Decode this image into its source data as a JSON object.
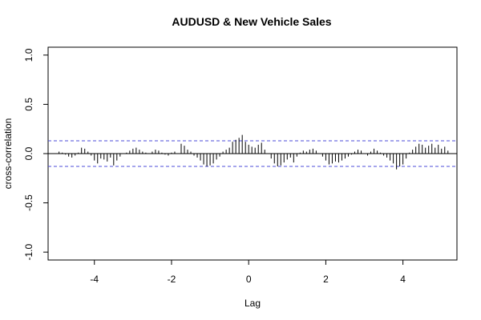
{
  "chart_data": {
    "type": "line",
    "title": "AUDUSD & New Vehicle Sales",
    "xlabel": "Lag",
    "ylabel": "cross-correlation",
    "xlim": [
      -5.2,
      5.4
    ],
    "ylim": [
      -1.08,
      1.08
    ],
    "x_ticks": [
      {
        "value": -4,
        "label": "-4"
      },
      {
        "value": -2,
        "label": "-2"
      },
      {
        "value": 0,
        "label": "0"
      },
      {
        "value": 2,
        "label": "2"
      },
      {
        "value": 4,
        "label": "4"
      }
    ],
    "y_ticks": [
      {
        "value": -1.0,
        "label": "-1.0"
      },
      {
        "value": -0.5,
        "label": "-0.5"
      },
      {
        "value": 0.0,
        "label": "0.0"
      },
      {
        "value": 0.5,
        "label": "0.5"
      },
      {
        "value": 1.0,
        "label": "1.0"
      }
    ],
    "confidence_bound": 0.13,
    "lag_step": 0.083333,
    "lag_start": -4.916667,
    "values": [
      0.02,
      0.01,
      -0.01,
      -0.03,
      -0.04,
      -0.02,
      0.01,
      0.06,
      0.05,
      0.02,
      -0.02,
      -0.07,
      -0.1,
      -0.05,
      -0.06,
      -0.08,
      -0.04,
      -0.12,
      -0.07,
      -0.03,
      0.0,
      0.01,
      0.03,
      0.05,
      0.06,
      0.04,
      0.02,
      0.01,
      0.0,
      0.02,
      0.04,
      0.03,
      0.01,
      -0.01,
      -0.02,
      0.01,
      0.02,
      0.0,
      0.1,
      0.08,
      0.04,
      0.02,
      -0.02,
      -0.04,
      -0.07,
      -0.11,
      -0.13,
      -0.12,
      -0.1,
      -0.06,
      -0.03,
      0.02,
      0.04,
      0.06,
      0.12,
      0.14,
      0.16,
      0.19,
      0.12,
      0.09,
      0.07,
      0.06,
      0.09,
      0.11,
      0.04,
      0.0,
      -0.05,
      -0.1,
      -0.13,
      -0.12,
      -0.09,
      -0.06,
      -0.04,
      -0.09,
      -0.03,
      0.01,
      0.03,
      0.02,
      0.04,
      0.05,
      0.03,
      0.0,
      -0.03,
      -0.07,
      -0.11,
      -0.1,
      -0.08,
      -0.09,
      -0.07,
      -0.05,
      -0.03,
      -0.01,
      0.02,
      0.04,
      0.03,
      0.0,
      -0.02,
      0.02,
      0.05,
      0.03,
      0.01,
      -0.02,
      -0.04,
      -0.07,
      -0.1,
      -0.16,
      -0.13,
      -0.11,
      -0.05,
      0.01,
      0.04,
      0.07,
      0.1,
      0.09,
      0.06,
      0.08,
      0.1,
      0.06,
      0.09,
      0.05,
      0.07,
      0.03
    ]
  }
}
